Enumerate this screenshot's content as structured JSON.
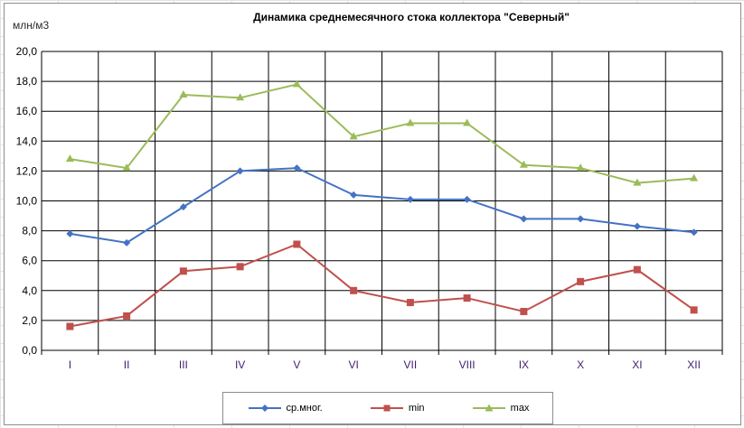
{
  "chart_data": {
    "type": "line",
    "title": "Динамика среднемесячного стока коллектора \"Северный\"",
    "ylabel": "млн/м3",
    "categories": [
      "I",
      "II",
      "III",
      "IV",
      "V",
      "VI",
      "VII",
      "VIII",
      "IX",
      "X",
      "XI",
      "XII"
    ],
    "ylim": [
      0,
      20
    ],
    "yticks": [
      "0,0",
      "2,0",
      "4,0",
      "6,0",
      "8,0",
      "10,0",
      "12,0",
      "14,0",
      "16,0",
      "18,0",
      "20,0"
    ],
    "grid": true,
    "legend_position": "bottom",
    "series": [
      {
        "name": "ср.мног.",
        "color": "#4472C4",
        "marker": "diamond",
        "values": [
          7.8,
          7.2,
          9.6,
          12.0,
          12.2,
          10.4,
          10.1,
          10.1,
          8.8,
          8.8,
          8.3,
          7.9
        ]
      },
      {
        "name": "min",
        "color": "#C0504D",
        "marker": "square",
        "values": [
          1.6,
          2.3,
          5.3,
          5.6,
          7.1,
          4.0,
          3.2,
          3.5,
          2.6,
          4.6,
          5.4,
          2.7
        ]
      },
      {
        "name": "max",
        "color": "#9BBB59",
        "marker": "triangle",
        "values": [
          12.8,
          12.2,
          17.1,
          16.9,
          17.8,
          14.3,
          15.2,
          15.2,
          12.4,
          12.2,
          11.2,
          11.5
        ]
      }
    ]
  }
}
